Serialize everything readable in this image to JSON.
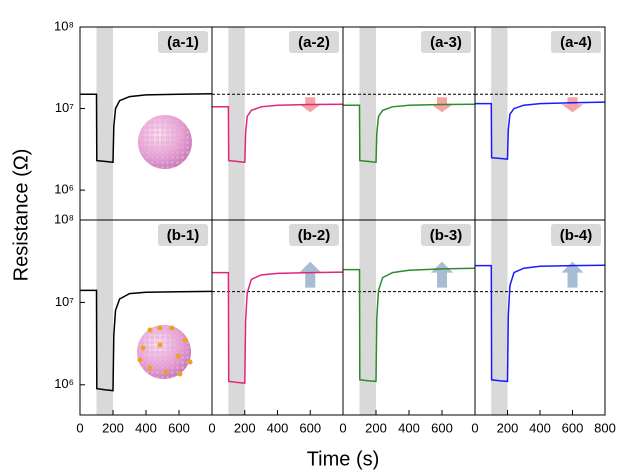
{
  "ylabel": "Resistance (Ω)",
  "xlabel": "Time (s)",
  "chart_data": [
    {
      "type": "line",
      "title": "(a-1)",
      "color": "#000000",
      "log_y": true,
      "xlim": [
        0,
        800
      ],
      "ylim": [
        430000,
        100000000
      ],
      "shaded_x": [
        100,
        200
      ],
      "yticks": [
        {
          "value": 1000000,
          "label": "10⁶"
        },
        {
          "value": 10000000,
          "label": "10⁷"
        },
        {
          "value": 100000000,
          "label": "10⁸"
        }
      ],
      "x": [
        0,
        100,
        102,
        150,
        198,
        200,
        205,
        215,
        240,
        300,
        400,
        600,
        800
      ],
      "values": [
        15000000,
        15000000,
        2300000,
        2250000,
        2200000,
        2200000,
        6000000,
        10000000,
        12500000,
        14000000,
        14700000,
        15000000,
        15200000
      ]
    },
    {
      "type": "line",
      "title": "(a-2)",
      "color": "#e0267a",
      "log_y": true,
      "xlim": [
        0,
        800
      ],
      "ylim": [
        430000,
        100000000
      ],
      "shaded_x": [
        100,
        200
      ],
      "reference_y": 15000000,
      "arrow": {
        "direction": "down",
        "color": "#f5a3a3",
        "x": 600
      },
      "x": [
        0,
        100,
        102,
        150,
        198,
        200,
        205,
        215,
        240,
        300,
        400,
        600,
        800
      ],
      "values": [
        10500000,
        10500000,
        2300000,
        2250000,
        2200000,
        2200000,
        5000000,
        8000000,
        9500000,
        10500000,
        11000000,
        11200000,
        11300000
      ]
    },
    {
      "type": "line",
      "title": "(a-3)",
      "color": "#2e8b2e",
      "log_y": true,
      "xlim": [
        0,
        800
      ],
      "ylim": [
        430000,
        100000000
      ],
      "shaded_x": [
        100,
        200
      ],
      "reference_y": 15000000,
      "arrow": {
        "direction": "down",
        "color": "#f5a3a3",
        "x": 600
      },
      "x": [
        0,
        100,
        102,
        150,
        198,
        200,
        205,
        215,
        240,
        300,
        400,
        600,
        800
      ],
      "values": [
        11000000,
        11000000,
        2300000,
        2250000,
        2200000,
        2200000,
        5000000,
        8000000,
        9500000,
        10500000,
        11000000,
        11200000,
        11300000
      ]
    },
    {
      "type": "line",
      "title": "(a-4)",
      "color": "#1a1aff",
      "log_y": true,
      "xlim": [
        0,
        800
      ],
      "ylim": [
        430000,
        100000000
      ],
      "shaded_x": [
        100,
        200
      ],
      "reference_y": 15000000,
      "arrow": {
        "direction": "down",
        "color": "#f5a3a3",
        "x": 600
      },
      "x": [
        0,
        100,
        102,
        150,
        198,
        200,
        205,
        215,
        240,
        300,
        400,
        600,
        800
      ],
      "values": [
        11500000,
        11500000,
        2500000,
        2450000,
        2400000,
        2400000,
        5500000,
        8500000,
        10000000,
        11000000,
        11500000,
        11800000,
        12000000
      ]
    },
    {
      "type": "line",
      "title": "(b-1)",
      "color": "#000000",
      "log_y": true,
      "xlim": [
        0,
        800
      ],
      "ylim": [
        430000,
        100000000
      ],
      "shaded_x": [
        100,
        200
      ],
      "yticks": [
        {
          "value": 1000000,
          "label": "10⁶"
        },
        {
          "value": 10000000,
          "label": "10⁷"
        },
        {
          "value": 100000000,
          "label": "10⁸"
        }
      ],
      "xticks": [
        0,
        200,
        400,
        600
      ],
      "x": [
        0,
        100,
        102,
        150,
        198,
        200,
        205,
        215,
        240,
        300,
        400,
        600,
        800
      ],
      "values": [
        14000000,
        14000000,
        900000,
        870000,
        850000,
        850000,
        4000000,
        8000000,
        11000000,
        12800000,
        13300000,
        13500000,
        13600000
      ]
    },
    {
      "type": "line",
      "title": "(b-2)",
      "color": "#e0267a",
      "log_y": true,
      "xlim": [
        0,
        800
      ],
      "ylim": [
        430000,
        100000000
      ],
      "shaded_x": [
        100,
        200
      ],
      "reference_y": 13500000,
      "arrow": {
        "direction": "up",
        "color": "#a8bcd4",
        "x": 600
      },
      "xticks": [
        0,
        200,
        400,
        600
      ],
      "x": [
        0,
        100,
        102,
        150,
        198,
        200,
        205,
        215,
        240,
        300,
        400,
        600,
        800
      ],
      "values": [
        23000000,
        23000000,
        1100000,
        1070000,
        1050000,
        1050000,
        6000000,
        13000000,
        19000000,
        21500000,
        22500000,
        23000000,
        23300000
      ]
    },
    {
      "type": "line",
      "title": "(b-3)",
      "color": "#2e8b2e",
      "log_y": true,
      "xlim": [
        0,
        800
      ],
      "ylim": [
        430000,
        100000000
      ],
      "shaded_x": [
        100,
        200
      ],
      "reference_y": 13500000,
      "arrow": {
        "direction": "up",
        "color": "#a8bcd4",
        "x": 600
      },
      "xticks": [
        0,
        200,
        400,
        600
      ],
      "x": [
        0,
        100,
        102,
        150,
        198,
        200,
        205,
        215,
        240,
        300,
        400,
        600,
        800
      ],
      "values": [
        25000000,
        25000000,
        1150000,
        1120000,
        1100000,
        1100000,
        6500000,
        14000000,
        20000000,
        23000000,
        24500000,
        25500000,
        26000000
      ]
    },
    {
      "type": "line",
      "title": "(b-4)",
      "color": "#1a1aff",
      "log_y": true,
      "xlim": [
        0,
        800
      ],
      "ylim": [
        430000,
        100000000
      ],
      "shaded_x": [
        100,
        200
      ],
      "reference_y": 13500000,
      "arrow": {
        "direction": "up",
        "color": "#a8bcd4",
        "x": 600
      },
      "xticks": [
        0,
        200,
        400,
        600,
        800
      ],
      "x": [
        0,
        100,
        102,
        150,
        198,
        200,
        205,
        215,
        240,
        300,
        400,
        600,
        800
      ],
      "values": [
        28000000,
        28000000,
        1150000,
        1120000,
        1100000,
        1100000,
        7000000,
        16000000,
        23000000,
        26000000,
        27500000,
        28000000,
        28300000
      ]
    }
  ]
}
